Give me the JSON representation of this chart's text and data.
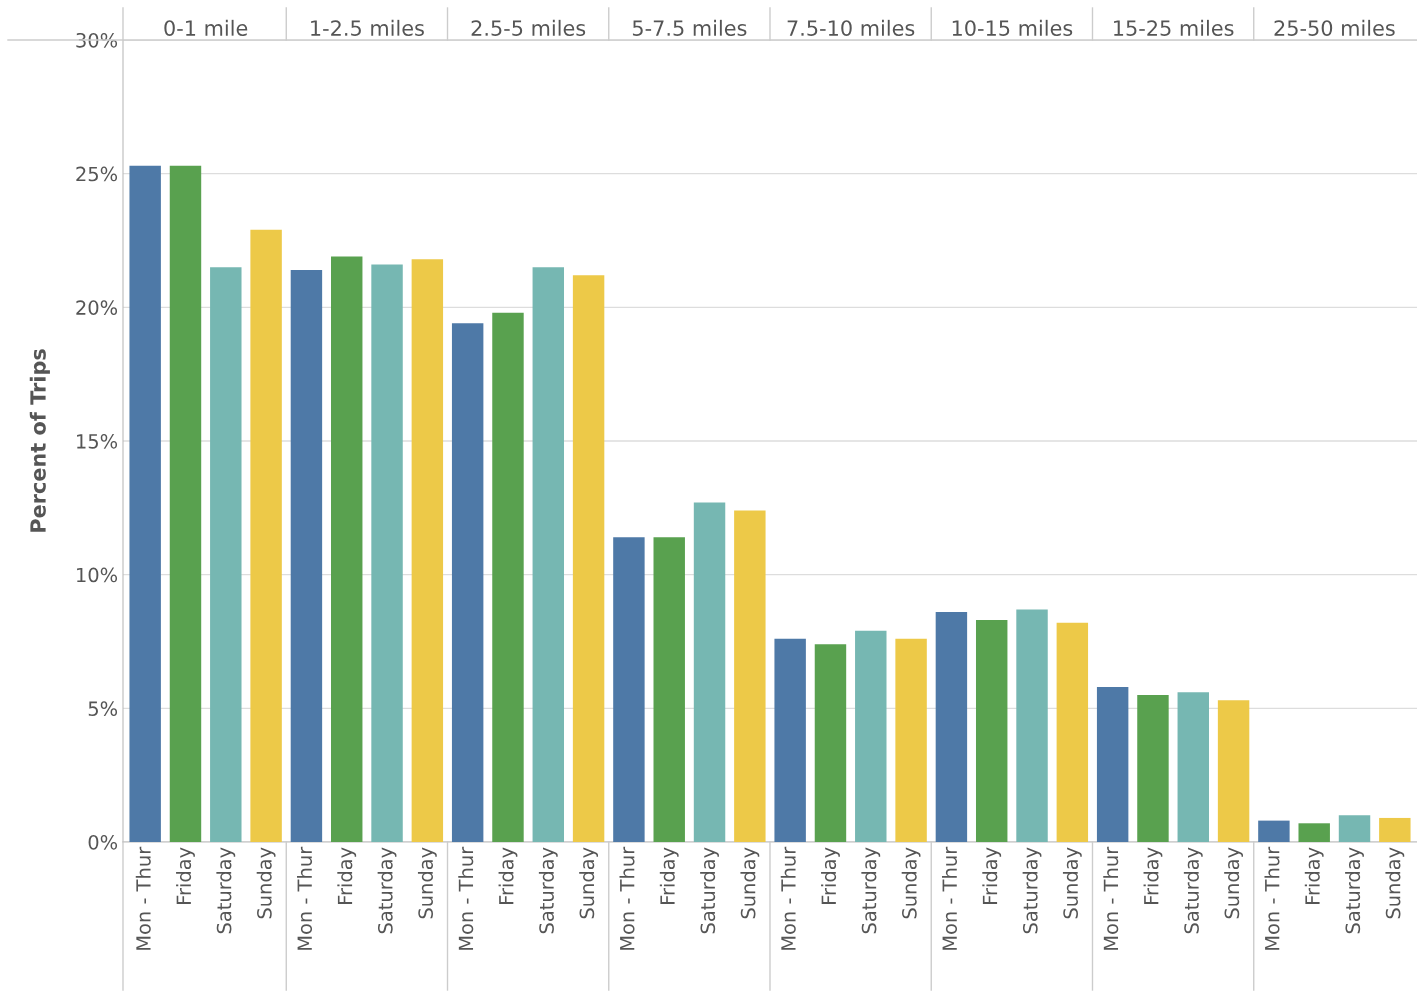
{
  "chart_data": {
    "type": "bar",
    "ylabel": "Percent of Trips",
    "categories": [
      "Mon - Thur",
      "Friday",
      "Saturday",
      "Sunday",
      "Mon - Thur",
      "Friday",
      "Saturday",
      "Sunday",
      "Mon - Thur",
      "Friday",
      "Saturday",
      "Sunday",
      "Mon - Thur",
      "Friday",
      "Saturday",
      "Sunday",
      "Mon - Thur",
      "Friday",
      "Saturday",
      "Sunday",
      "Mon - Thur",
      "Friday",
      "Saturday",
      "Sunday",
      "Mon - Thur",
      "Friday",
      "Saturday",
      "Sunday",
      "Mon - Thur",
      "Friday",
      "Saturday",
      "Sunday"
    ],
    "colors": [
      "#4e79a7",
      "#59a14f",
      "#76b7b2",
      "#edc948",
      "#4e79a7",
      "#59a14f",
      "#76b7b2",
      "#edc948",
      "#4e79a7",
      "#59a14f",
      "#76b7b2",
      "#edc948",
      "#4e79a7",
      "#59a14f",
      "#76b7b2",
      "#edc948",
      "#4e79a7",
      "#59a14f",
      "#76b7b2",
      "#edc948",
      "#4e79a7",
      "#59a14f",
      "#76b7b2",
      "#edc948",
      "#4e79a7",
      "#59a14f",
      "#76b7b2",
      "#edc948",
      "#4e79a7",
      "#59a14f",
      "#76b7b2",
      "#edc948"
    ],
    "values": [
      25.3,
      25.3,
      21.5,
      22.9,
      21.4,
      21.9,
      21.6,
      21.8,
      19.4,
      19.8,
      21.5,
      21.2,
      11.4,
      11.4,
      12.7,
      12.4,
      7.6,
      7.4,
      7.9,
      7.6,
      8.6,
      8.3,
      8.7,
      8.2,
      5.8,
      5.5,
      5.6,
      5.3,
      0.8,
      0.7,
      1.0,
      0.9
    ],
    "annotations": [
      "0-1 mile",
      "1-2.5 miles",
      "2.5-5 miles",
      "5-7.5 miles",
      "7.5-10 miles",
      "10-15 miles",
      "15-25 miles",
      "25-50 miles"
    ],
    "ylim": [
      0,
      30
    ],
    "yticks": [
      {
        "value": 0,
        "label": "0%"
      },
      {
        "value": 5,
        "label": "5%"
      },
      {
        "value": 10,
        "label": "10%"
      },
      {
        "value": 15,
        "label": "15%"
      },
      {
        "value": 20,
        "label": "20%"
      },
      {
        "value": 25,
        "label": "25%"
      },
      {
        "value": 30,
        "label": "30%"
      }
    ],
    "grid": "y"
  }
}
